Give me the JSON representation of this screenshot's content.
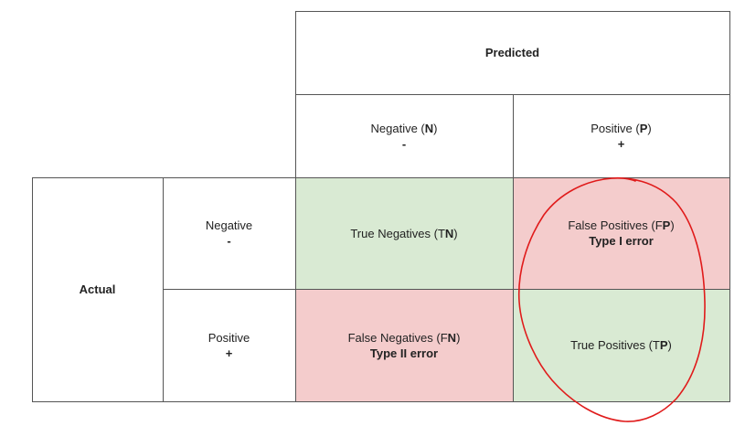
{
  "header": {
    "predicted": "Predicted"
  },
  "columns": {
    "negative": {
      "label": "Negative (",
      "letter": "N",
      "close": ")",
      "sign": "-"
    },
    "positive": {
      "label": "Positive (",
      "letter": "P",
      "close": ")",
      "sign": "+"
    }
  },
  "rows": {
    "group_label": "Actual",
    "negative": {
      "label": "Negative",
      "sign": "-"
    },
    "positive": {
      "label": "Positive",
      "sign": "+"
    }
  },
  "cells": {
    "tn": {
      "prefix": "True Negatives (T",
      "letter": "N",
      "suffix": ")",
      "color": "#d9ead3"
    },
    "fp": {
      "prefix": "False Positives (F",
      "letter": "P",
      "suffix": ")",
      "error": "Type I error",
      "color": "#f4cccc"
    },
    "fn": {
      "prefix": "False Negatives (F",
      "letter": "N",
      "suffix": ")",
      "error": "Type II error",
      "color": "#f4cccc"
    },
    "tp": {
      "prefix": "True Positives (T",
      "letter": "P",
      "suffix": ")",
      "color": "#d9ead3"
    }
  },
  "annotation": {
    "shape": "hand-drawn-circle",
    "color": "#e01b1b"
  }
}
